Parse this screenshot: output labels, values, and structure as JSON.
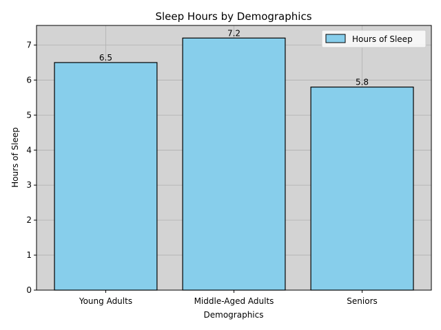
{
  "chart_data": {
    "type": "bar",
    "title": "Sleep Hours by Demographics",
    "xlabel": "Demographics",
    "ylabel": "Hours of Sleep",
    "categories": [
      "Young Adults",
      "Middle-Aged Adults",
      "Seniors"
    ],
    "series": [
      {
        "name": "Hours of Sleep",
        "values": [
          6.5,
          7.2,
          5.8
        ]
      }
    ],
    "data_labels": [
      "6.5",
      "7.2",
      "5.8"
    ],
    "ylim": [
      0,
      7.56
    ],
    "yticks": [
      0,
      1,
      2,
      3,
      4,
      5,
      6,
      7
    ],
    "grid": true,
    "legend_position": "upper right",
    "colors": {
      "bar_fill": "#87ceeb",
      "bar_edge": "#000000",
      "plot_background": "#d3d3d3",
      "grid": "#b0b0b0"
    }
  }
}
